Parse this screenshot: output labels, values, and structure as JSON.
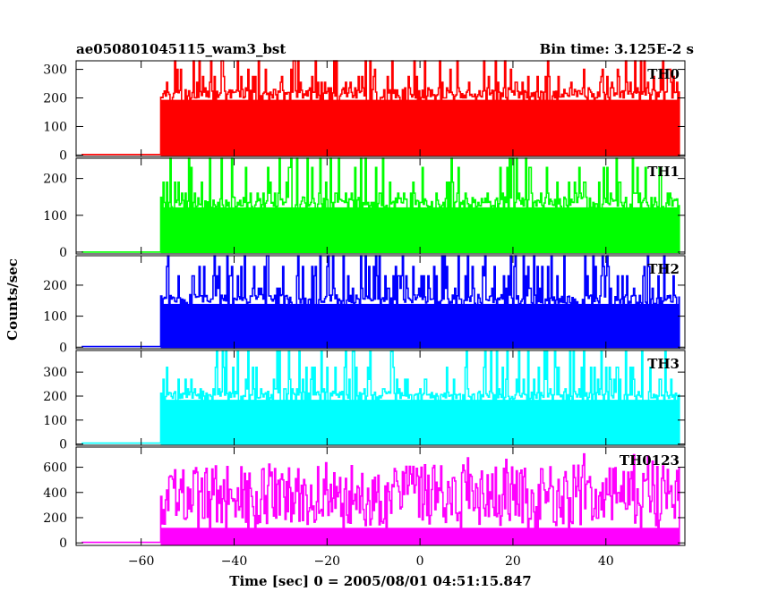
{
  "header": {
    "title": "ae050801045115_wam3_bst",
    "bin_time": "Bin time: 3.125E-2 s"
  },
  "chart_data": {
    "type": "line",
    "render_style": "step-histogram",
    "xlabel": "Time [sec] 0 = 2005/08/01 04:51:15.847",
    "ylabel": "Counts/sec",
    "xlim": [
      -74,
      57
    ],
    "x_ticks": [
      -60,
      -40,
      -20,
      0,
      20,
      40
    ],
    "grid": false,
    "bin_width": 0.03125,
    "burst_window": [
      -55.8,
      55.8
    ],
    "panels": [
      {
        "name": "TH0",
        "color": "#ff0000",
        "ylim": [
          -5,
          330
        ],
        "y_ticks": [
          0,
          100,
          200,
          300
        ],
        "pre_level": 2,
        "mean_level": 215,
        "levels": [
          190,
          200,
          220,
          235,
          255,
          275,
          300,
          330
        ]
      },
      {
        "name": "TH1",
        "color": "#00ff00",
        "ylim": [
          -5,
          255
        ],
        "y_ticks": [
          0,
          100,
          200
        ],
        "pre_level": 0,
        "mean_level": 135,
        "levels": [
          100,
          135,
          160,
          190,
          230,
          255
        ]
      },
      {
        "name": "TH2",
        "color": "#0000ff",
        "ylim": [
          -5,
          295
        ],
        "y_ticks": [
          0,
          100,
          200
        ],
        "pre_level": 2,
        "mean_level": 155,
        "levels": [
          130,
          155,
          190,
          230,
          260,
          295
        ]
      },
      {
        "name": "TH3",
        "color": "#00ffff",
        "ylim": [
          -5,
          390
        ],
        "y_ticks": [
          0,
          100,
          200,
          300
        ],
        "pre_level": 4,
        "mean_level": 205,
        "levels": [
          160,
          205,
          230,
          270,
          320,
          385
        ]
      },
      {
        "name": "TH0123",
        "color": "#ff00ff",
        "ylim": [
          -20,
          760
        ],
        "y_ticks": [
          0,
          200,
          400,
          600
        ],
        "pre_level": 4,
        "mean_level": 360,
        "band": [
          80,
          680
        ]
      }
    ]
  }
}
